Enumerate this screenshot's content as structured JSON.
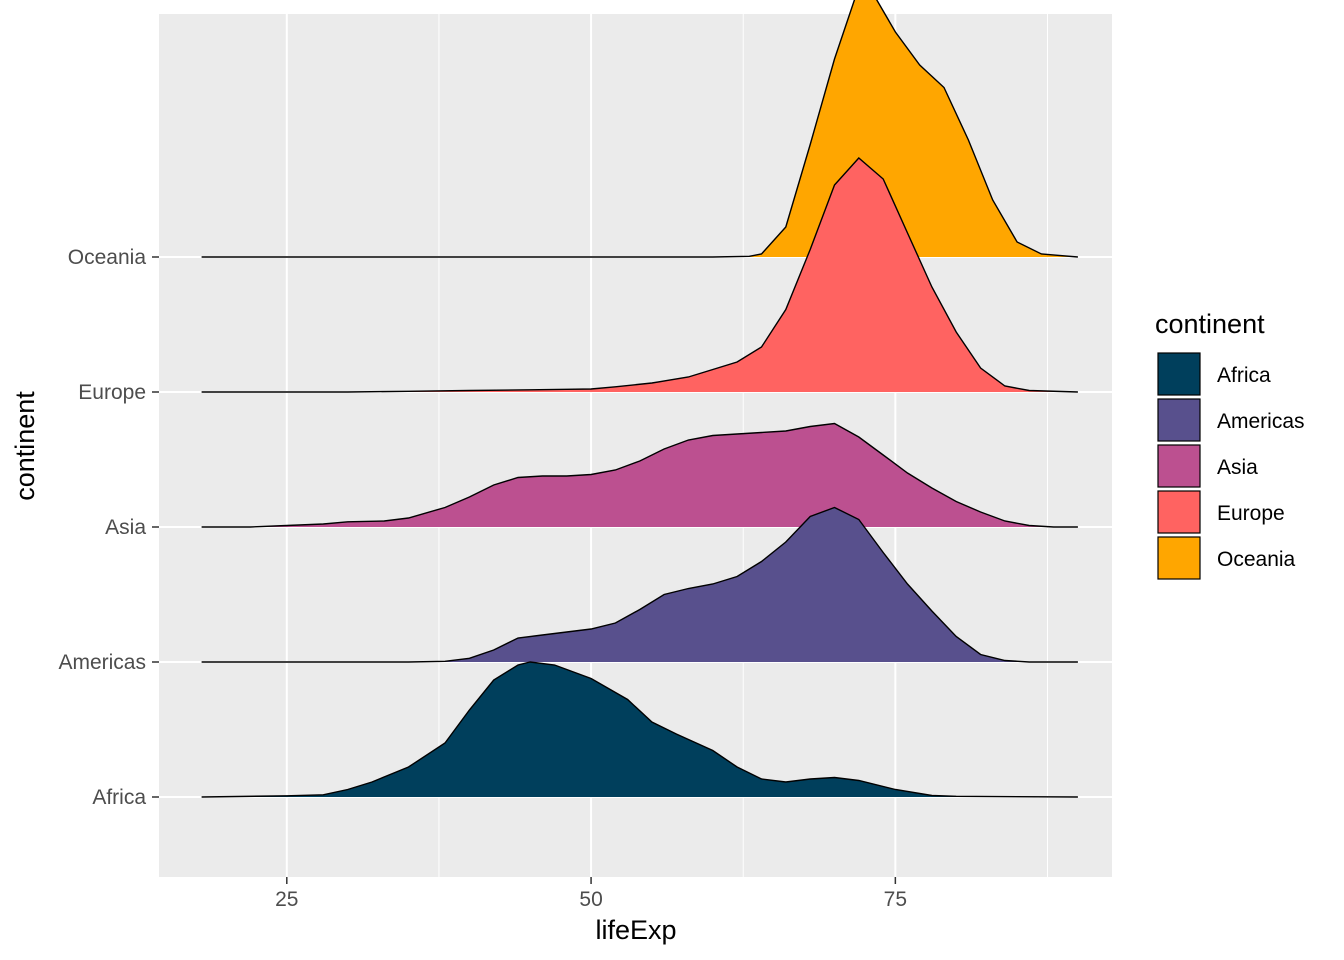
{
  "chart_data": {
    "type": "ridgeline",
    "xlabel": "lifeExp",
    "ylabel": "continent",
    "xlim": [
      14.5,
      92.8
    ],
    "x_ticks": [
      25,
      50,
      75
    ],
    "x_tick_labels": [
      "25",
      "50",
      "75"
    ],
    "grid": true,
    "legend": {
      "title": "continent",
      "placement": "right",
      "entries": [
        "Africa",
        "Americas",
        "Asia",
        "Europe",
        "Oceania"
      ]
    },
    "categories": [
      "Africa",
      "Americas",
      "Asia",
      "Europe",
      "Oceania"
    ],
    "colors": {
      "Africa": "#003f5c",
      "Americas": "#58508d",
      "Asia": "#bc5090",
      "Europe": "#ff6361",
      "Oceania": "#ffa600"
    },
    "series": [
      {
        "name": "Africa",
        "points": [
          [
            18,
            0
          ],
          [
            25,
            0.008
          ],
          [
            28,
            0.015
          ],
          [
            30,
            0.05
          ],
          [
            32,
            0.1
          ],
          [
            35,
            0.2
          ],
          [
            38,
            0.36
          ],
          [
            40,
            0.58
          ],
          [
            42,
            0.78
          ],
          [
            44,
            0.88
          ],
          [
            45,
            0.9
          ],
          [
            47,
            0.88
          ],
          [
            50,
            0.79
          ],
          [
            53,
            0.65
          ],
          [
            55,
            0.5
          ],
          [
            57,
            0.42
          ],
          [
            60,
            0.31
          ],
          [
            62,
            0.2
          ],
          [
            64,
            0.12
          ],
          [
            66,
            0.1
          ],
          [
            68,
            0.12
          ],
          [
            70,
            0.13
          ],
          [
            72,
            0.11
          ],
          [
            75,
            0.05
          ],
          [
            78,
            0.01
          ],
          [
            80,
            0.005
          ],
          [
            90,
            0
          ]
        ]
      },
      {
        "name": "Americas",
        "points": [
          [
            18,
            0
          ],
          [
            35,
            0
          ],
          [
            38,
            0.005
          ],
          [
            40,
            0.025
          ],
          [
            42,
            0.08
          ],
          [
            44,
            0.16
          ],
          [
            46,
            0.18
          ],
          [
            48,
            0.2
          ],
          [
            50,
            0.22
          ],
          [
            52,
            0.26
          ],
          [
            54,
            0.35
          ],
          [
            56,
            0.45
          ],
          [
            58,
            0.49
          ],
          [
            60,
            0.52
          ],
          [
            62,
            0.57
          ],
          [
            64,
            0.67
          ],
          [
            66,
            0.8
          ],
          [
            68,
            0.97
          ],
          [
            70,
            1.03
          ],
          [
            72,
            0.95
          ],
          [
            74,
            0.73
          ],
          [
            76,
            0.52
          ],
          [
            78,
            0.34
          ],
          [
            80,
            0.17
          ],
          [
            82,
            0.05
          ],
          [
            84,
            0.01
          ],
          [
            86,
            0
          ],
          [
            90,
            0
          ]
        ]
      },
      {
        "name": "Asia",
        "points": [
          [
            18,
            0
          ],
          [
            22,
            0
          ],
          [
            25,
            0.01
          ],
          [
            28,
            0.02
          ],
          [
            30,
            0.035
          ],
          [
            33,
            0.04
          ],
          [
            35,
            0.06
          ],
          [
            38,
            0.13
          ],
          [
            40,
            0.2
          ],
          [
            42,
            0.28
          ],
          [
            44,
            0.33
          ],
          [
            46,
            0.34
          ],
          [
            48,
            0.34
          ],
          [
            50,
            0.35
          ],
          [
            52,
            0.38
          ],
          [
            54,
            0.44
          ],
          [
            56,
            0.52
          ],
          [
            58,
            0.58
          ],
          [
            60,
            0.61
          ],
          [
            62,
            0.62
          ],
          [
            64,
            0.63
          ],
          [
            66,
            0.64
          ],
          [
            68,
            0.67
          ],
          [
            70,
            0.69
          ],
          [
            72,
            0.6
          ],
          [
            74,
            0.48
          ],
          [
            76,
            0.36
          ],
          [
            78,
            0.26
          ],
          [
            80,
            0.17
          ],
          [
            82,
            0.1
          ],
          [
            84,
            0.04
          ],
          [
            86,
            0.01
          ],
          [
            88,
            0
          ],
          [
            90,
            0
          ]
        ]
      },
      {
        "name": "Europe",
        "points": [
          [
            18,
            0
          ],
          [
            25,
            0
          ],
          [
            30,
            0
          ],
          [
            35,
            0.005
          ],
          [
            40,
            0.01
          ],
          [
            45,
            0.015
          ],
          [
            48,
            0.018
          ],
          [
            50,
            0.02
          ],
          [
            52,
            0.035
          ],
          [
            55,
            0.06
          ],
          [
            58,
            0.1
          ],
          [
            60,
            0.15
          ],
          [
            62,
            0.2
          ],
          [
            64,
            0.3
          ],
          [
            66,
            0.55
          ],
          [
            68,
            0.95
          ],
          [
            70,
            1.38
          ],
          [
            72,
            1.56
          ],
          [
            74,
            1.42
          ],
          [
            76,
            1.06
          ],
          [
            78,
            0.7
          ],
          [
            80,
            0.4
          ],
          [
            82,
            0.16
          ],
          [
            84,
            0.04
          ],
          [
            86,
            0.01
          ],
          [
            90,
            0
          ]
        ]
      },
      {
        "name": "Oceania",
        "points": [
          [
            18,
            0
          ],
          [
            60,
            0
          ],
          [
            63,
            0.005
          ],
          [
            64,
            0.02
          ],
          [
            66,
            0.2
          ],
          [
            68,
            0.75
          ],
          [
            70,
            1.32
          ],
          [
            72,
            1.8
          ],
          [
            73,
            1.78
          ],
          [
            75,
            1.5
          ],
          [
            77,
            1.28
          ],
          [
            79,
            1.13
          ],
          [
            81,
            0.78
          ],
          [
            83,
            0.38
          ],
          [
            85,
            0.1
          ],
          [
            87,
            0.02
          ],
          [
            90,
            0
          ]
        ]
      }
    ]
  }
}
